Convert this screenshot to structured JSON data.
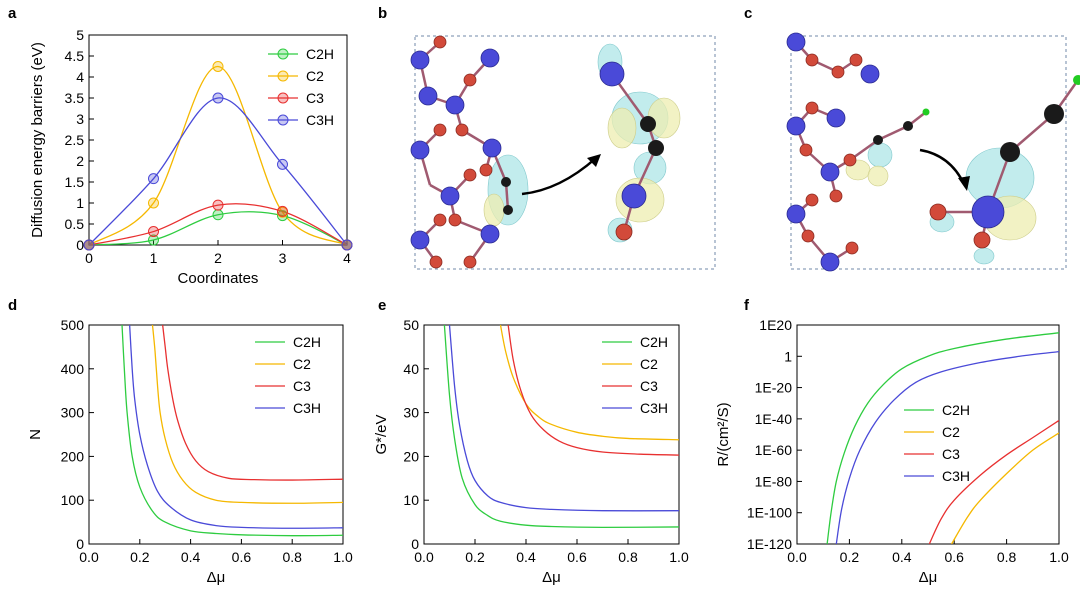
{
  "panel_labels": [
    "a",
    "b",
    "c",
    "d",
    "e",
    "f"
  ],
  "colors": {
    "C2H": "#2ecc40",
    "C2": "#f5b800",
    "C3": "#e83030",
    "C3H": "#4a4ad8",
    "dashed_frame": "#7088a8",
    "atom_blue": "#4a4ad8",
    "atom_red": "#d24a3a",
    "atom_black": "#1a1a1a",
    "atom_green": "#22cc22",
    "iso_cyan": "#a8e4e6",
    "iso_yellow": "#eeeeb0"
  },
  "chart_data": [
    {
      "panel": "a",
      "type": "line",
      "xlabel": "Coordinates",
      "ylabel": "Diffusion energy barriers (eV)",
      "xlim": [
        0,
        4
      ],
      "ylim": [
        0,
        5
      ],
      "xticks": [
        "0",
        "1",
        "2",
        "3",
        "4"
      ],
      "yticks": [
        "0",
        "0.5",
        "1",
        "1.5",
        "2",
        "2.5",
        "3",
        "3.5",
        "4",
        "4.5",
        "5"
      ],
      "legend_position": "top-right",
      "x": [
        0,
        1,
        2,
        3,
        4
      ],
      "series": [
        {
          "name": "C2H",
          "values": [
            0,
            0.12,
            0.72,
            0.7,
            0
          ],
          "color_key": "C2H"
        },
        {
          "name": "C2",
          "values": [
            0,
            1.0,
            4.25,
            0.78,
            0
          ],
          "color_key": "C2"
        },
        {
          "name": "C3",
          "values": [
            0,
            0.32,
            0.95,
            0.8,
            0
          ],
          "color_key": "C3"
        },
        {
          "name": "C3H",
          "values": [
            0,
            1.58,
            3.5,
            1.92,
            0
          ],
          "color_key": "C3H"
        }
      ]
    },
    {
      "panel": "d",
      "type": "line",
      "xlabel": "Δμ",
      "ylabel": "N",
      "xlim": [
        0,
        1
      ],
      "ylim": [
        0,
        500
      ],
      "xticks": [
        "0.0",
        "0.2",
        "0.4",
        "0.6",
        "0.8",
        "1.0"
      ],
      "yticks": [
        "0",
        "100",
        "200",
        "300",
        "400",
        "500"
      ],
      "legend_position": "top-right",
      "series": [
        {
          "name": "C2H",
          "color_key": "C2H",
          "x": [
            0.13,
            0.14,
            0.15,
            0.17,
            0.2,
            0.25,
            0.3,
            0.4,
            0.5,
            0.6,
            0.8,
            1.0
          ],
          "values": [
            500,
            390,
            300,
            200,
            130,
            75,
            50,
            30,
            24,
            21,
            19,
            20
          ]
        },
        {
          "name": "C2",
          "color_key": "C2",
          "x": [
            0.25,
            0.26,
            0.27,
            0.28,
            0.3,
            0.33,
            0.37,
            0.42,
            0.5,
            0.6,
            0.8,
            1.0
          ],
          "values": [
            500,
            440,
            360,
            300,
            240,
            185,
            145,
            118,
            100,
            95,
            93,
            95
          ]
        },
        {
          "name": "C3",
          "color_key": "C3",
          "x": [
            0.29,
            0.3,
            0.31,
            0.33,
            0.35,
            0.38,
            0.42,
            0.47,
            0.55,
            0.65,
            0.8,
            1.0
          ],
          "values": [
            500,
            450,
            400,
            330,
            280,
            230,
            190,
            165,
            150,
            147,
            146,
            148
          ]
        },
        {
          "name": "C3H",
          "color_key": "C3H",
          "x": [
            0.16,
            0.17,
            0.18,
            0.2,
            0.23,
            0.27,
            0.32,
            0.4,
            0.5,
            0.6,
            0.8,
            1.0
          ],
          "values": [
            500,
            400,
            330,
            250,
            180,
            120,
            85,
            55,
            42,
            38,
            36,
            37
          ]
        }
      ]
    },
    {
      "panel": "e",
      "type": "line",
      "xlabel": "Δμ",
      "ylabel": "G*/eV",
      "xlim": [
        0,
        1
      ],
      "ylim": [
        0,
        50
      ],
      "xticks": [
        "0.0",
        "0.2",
        "0.4",
        "0.6",
        "0.8",
        "1.0"
      ],
      "yticks": [
        "0",
        "10",
        "20",
        "30",
        "40",
        "50"
      ],
      "legend_position": "top-right",
      "series": [
        {
          "name": "C2H",
          "color_key": "C2H",
          "x": [
            0.08,
            0.1,
            0.12,
            0.15,
            0.2,
            0.25,
            0.3,
            0.4,
            0.5,
            0.7,
            1.0
          ],
          "values": [
            50,
            34,
            24,
            15,
            9,
            6.5,
            5.2,
            4.3,
            4.0,
            3.8,
            3.9
          ]
        },
        {
          "name": "C2",
          "color_key": "C2",
          "x": [
            0.3,
            0.32,
            0.35,
            0.4,
            0.45,
            0.5,
            0.6,
            0.7,
            0.8,
            1.0
          ],
          "values": [
            50,
            44,
            38,
            32,
            29,
            27.3,
            25.5,
            24.6,
            24.1,
            23.8
          ]
        },
        {
          "name": "C3",
          "color_key": "C3",
          "x": [
            0.33,
            0.35,
            0.38,
            0.42,
            0.47,
            0.53,
            0.6,
            0.7,
            0.85,
            1.0
          ],
          "values": [
            50,
            42,
            35,
            29.5,
            26,
            23.5,
            22,
            21,
            20.5,
            20.3
          ]
        },
        {
          "name": "C3H",
          "color_key": "C3H",
          "x": [
            0.1,
            0.12,
            0.14,
            0.17,
            0.2,
            0.25,
            0.3,
            0.4,
            0.5,
            0.7,
            1.0
          ],
          "values": [
            50,
            36,
            27,
            19,
            14.5,
            11,
            9.5,
            8.3,
            7.9,
            7.6,
            7.6
          ]
        }
      ]
    },
    {
      "panel": "f",
      "type": "line",
      "xlabel": "Δμ",
      "ylabel": "R/(cm²/S)",
      "y_scale": "log",
      "xlim": [
        0,
        1
      ],
      "ylim_log10": [
        -120,
        20
      ],
      "xticks": [
        "0.0",
        "0.2",
        "0.4",
        "0.6",
        "0.8",
        "1.0"
      ],
      "yticks": [
        "1E-120",
        "1E-100",
        "1E-80",
        "1E-60",
        "1E-40",
        "1E-20",
        "1",
        "1E20"
      ],
      "legend_position": "center-left",
      "series": [
        {
          "name": "C2H",
          "color_key": "C2H",
          "x": [
            0.115,
            0.13,
            0.15,
            0.18,
            0.22,
            0.27,
            0.33,
            0.4,
            0.5,
            0.6,
            0.8,
            1.0
          ],
          "log10_values": [
            -120,
            -100,
            -80,
            -62,
            -45,
            -30,
            -18,
            -8,
            0,
            5,
            11,
            15
          ]
        },
        {
          "name": "C2",
          "color_key": "C2",
          "x": [
            0.59,
            0.65,
            0.7,
            0.8,
            0.9,
            1.0
          ],
          "log10_values": [
            -120,
            -103,
            -92,
            -75,
            -60,
            -49
          ]
        },
        {
          "name": "C3",
          "color_key": "C3",
          "x": [
            0.505,
            0.55,
            0.6,
            0.7,
            0.8,
            0.9,
            1.0
          ],
          "log10_values": [
            -120,
            -104,
            -92,
            -76,
            -63,
            -52,
            -41
          ]
        },
        {
          "name": "C3H",
          "color_key": "C3H",
          "x": [
            0.15,
            0.17,
            0.2,
            0.24,
            0.3,
            0.37,
            0.45,
            0.55,
            0.7,
            0.85,
            1.0
          ],
          "log10_values": [
            -120,
            -98,
            -78,
            -60,
            -42,
            -28,
            -17,
            -10,
            -4,
            0,
            3
          ]
        }
      ]
    }
  ]
}
